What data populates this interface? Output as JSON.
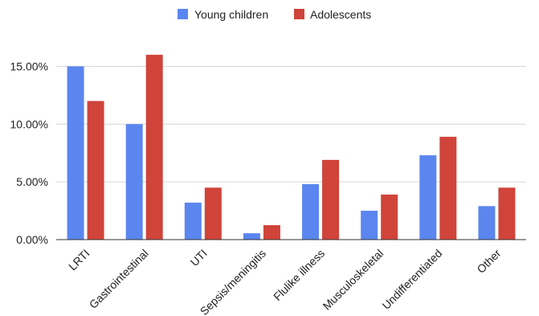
{
  "chart_data": {
    "type": "bar",
    "categories": [
      "LRTI",
      "Gastrointestinal",
      "UTI",
      "Sepsis/meningitis",
      "Flulike illness",
      "Musculoskeletal",
      "Undifferentiated",
      "Other"
    ],
    "series": [
      {
        "name": "Young children",
        "color": "#5b86ef",
        "values": [
          15.0,
          10.0,
          3.2,
          0.55,
          4.8,
          2.5,
          7.3,
          2.9
        ]
      },
      {
        "name": "Adolescents",
        "color": "#d0443a",
        "values": [
          12.0,
          16.0,
          4.5,
          1.25,
          6.9,
          3.9,
          8.9,
          4.5
        ]
      }
    ],
    "yticks": [
      "0.00%",
      "5.00%",
      "10.00%",
      "15.00%"
    ],
    "ylim": [
      0,
      17.5
    ],
    "ytick_values": [
      0,
      5,
      10,
      15
    ],
    "legend_position": "top-center",
    "grid": true
  }
}
